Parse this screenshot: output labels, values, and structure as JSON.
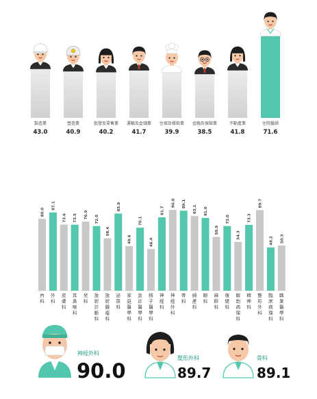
{
  "colors": {
    "teal": "#52c7ad",
    "gray": "#c8c8c8",
    "skin": "#f5c9a8",
    "hair": "#1e1e1e",
    "text": "#222222"
  },
  "chart_data": [
    {
      "type": "bar",
      "categories": [
        "製造業",
        "營造業",
        "批發及零售業",
        "運輸及倉儲業",
        "住宿及餐飲業",
        "金融及保險業",
        "不動產業",
        "住院醫師"
      ],
      "values": [
        43.0,
        40.9,
        40.2,
        41.7,
        39.9,
        38.5,
        41.8,
        71.6
      ],
      "value_labels": [
        "43.0",
        "40.9",
        "40.2",
        "41.7",
        "39.9",
        "38.5",
        "41.8",
        "71.6"
      ],
      "highlight": [
        false,
        false,
        false,
        false,
        false,
        false,
        false,
        true
      ],
      "icons": [
        "worker-icon",
        "helmet-worker-icon",
        "retail-clerk-icon",
        "driver-icon",
        "chef-icon",
        "banker-icon",
        "realtor-icon",
        "doctor-icon"
      ],
      "ylim": [
        0,
        72
      ]
    },
    {
      "type": "bar",
      "categories": [
        "內科",
        "外科",
        "皮膚科",
        "耳鼻喉科",
        "兒科",
        "放射診斷科",
        "放射腫瘤科",
        "泌尿科",
        "家庭醫學科",
        "急診醫學科",
        "核子醫學科",
        "神經科",
        "神經外科",
        "骨科",
        "婦產科",
        "眼科",
        "麻醉科",
        "復健科",
        "解剖病理科",
        "精神科",
        "整形外科",
        "臨床病理科",
        "職業醫學科"
      ],
      "values": [
        80.0,
        87.1,
        73.6,
        73.5,
        76.9,
        72.0,
        58.4,
        85.9,
        49.6,
        70.1,
        46.4,
        81.7,
        90.0,
        89.1,
        83.1,
        81.0,
        59.9,
        72.0,
        54.3,
        73.3,
        89.7,
        48.2,
        50.3
      ],
      "value_labels": [
        "80.0",
        "87.1",
        "73.6",
        "73.5",
        "76.9",
        "72.0",
        "58.4",
        "85.9",
        "49.6",
        "70.1",
        "46.4",
        "81.7",
        "90.0",
        "89.1",
        "83.1",
        "81.0",
        "59.9",
        "72.0",
        "54.3",
        "73.3",
        "89.7",
        "48.2",
        "50.3"
      ],
      "highlight": [
        false,
        true,
        false,
        true,
        false,
        true,
        false,
        true,
        false,
        true,
        false,
        true,
        false,
        true,
        false,
        true,
        false,
        true,
        false,
        true,
        false,
        true,
        false
      ],
      "ylim": [
        0,
        100
      ]
    }
  ],
  "top_specialties": [
    {
      "name": "神經外科",
      "value": "90.0",
      "icon": "surgeon-icon"
    },
    {
      "name": "整形外科",
      "value": "89.7",
      "icon": "female-doctor-icon"
    },
    {
      "name": "骨科",
      "value": "89.1",
      "icon": "male-doctor-icon"
    }
  ]
}
